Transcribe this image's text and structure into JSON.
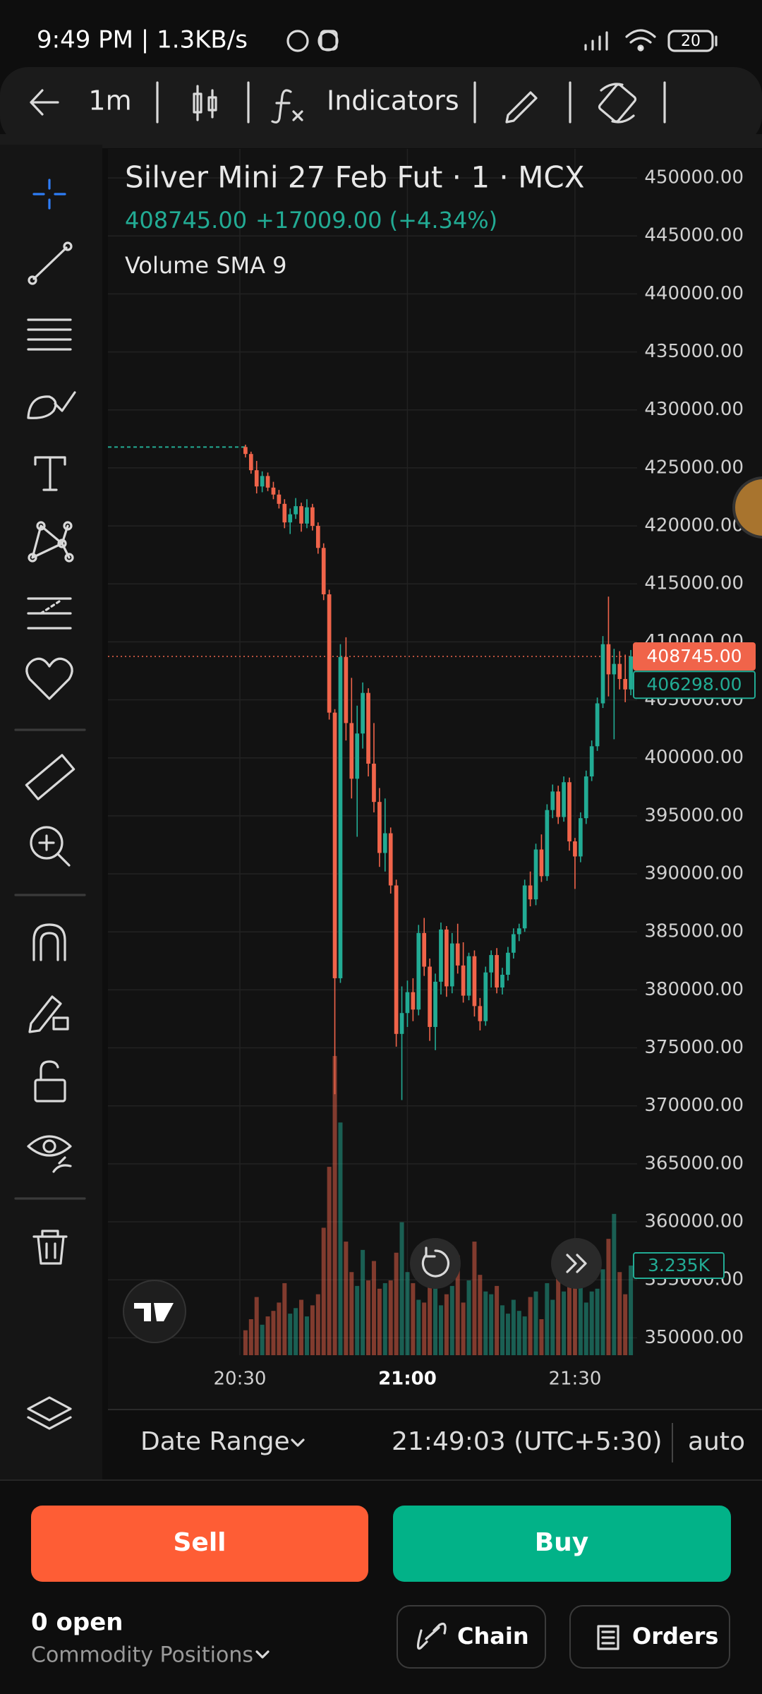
{
  "status_bar": {
    "time": "9:49 PM | 1.3KB/s",
    "battery": "20"
  },
  "toolbar": {
    "interval": "1m",
    "indicators": "Indicators"
  },
  "chart_data": {
    "type": "candlestick",
    "title": "Silver Mini 27 Feb Fut · 1 · MCX",
    "quote": "408745.00",
    "change": "+17009.00 (+4.34%)",
    "indicator": "Volume SMA 9",
    "up_color": "#22ab94",
    "down_color": "#f0644a",
    "ylim": [
      348500,
      452500
    ],
    "yticks": [
      {
        "value": 450000,
        "label": "450000.00"
      },
      {
        "value": 445000,
        "label": "445000.00"
      },
      {
        "value": 440000,
        "label": "440000.00"
      },
      {
        "value": 435000,
        "label": "435000.00"
      },
      {
        "value": 430000,
        "label": "430000.00"
      },
      {
        "value": 425000,
        "label": "425000.00"
      },
      {
        "value": 420000,
        "label": "420000.00"
      },
      {
        "value": 415000,
        "label": "415000.00"
      },
      {
        "value": 410000,
        "label": "410000.00"
      },
      {
        "value": 405000,
        "label": "405000.00"
      },
      {
        "value": 400000,
        "label": "400000.00"
      },
      {
        "value": 395000,
        "label": "395000.00"
      },
      {
        "value": 390000,
        "label": "390000.00"
      },
      {
        "value": 385000,
        "label": "385000.00"
      },
      {
        "value": 380000,
        "label": "380000.00"
      },
      {
        "value": 375000,
        "label": "375000.00"
      },
      {
        "value": 370000,
        "label": "370000.00"
      },
      {
        "value": 365000,
        "label": "365000.00"
      },
      {
        "value": 360000,
        "label": "360000.00"
      },
      {
        "value": 355000,
        "label": "355000.00"
      },
      {
        "value": 350000,
        "label": "350000.00"
      }
    ],
    "xlim": [
      "20:06",
      "21:41"
    ],
    "xticks": [
      "20:30",
      "21:00",
      "21:30"
    ],
    "grid": true,
    "reference_line": 426800,
    "x": [
      "20:31",
      "20:32",
      "20:33",
      "20:34",
      "20:35",
      "20:36",
      "20:37",
      "20:38",
      "20:39",
      "20:40",
      "20:41",
      "20:42",
      "20:43",
      "20:44",
      "20:45",
      "20:46",
      "20:47",
      "20:48",
      "20:49",
      "20:50",
      "20:51",
      "20:52",
      "20:53",
      "20:54",
      "20:55",
      "20:56",
      "20:57",
      "20:58",
      "20:59",
      "21:00",
      "21:01",
      "21:02",
      "21:03",
      "21:04",
      "21:05",
      "21:06",
      "21:07",
      "21:08",
      "21:09",
      "21:10",
      "21:11",
      "21:12",
      "21:13",
      "21:14",
      "21:15",
      "21:16",
      "21:17",
      "21:18",
      "21:19",
      "21:20",
      "21:21",
      "21:22",
      "21:23",
      "21:24",
      "21:25",
      "21:26",
      "21:27",
      "21:28",
      "21:29",
      "21:30",
      "21:31",
      "21:32",
      "21:33",
      "21:34",
      "21:35",
      "21:36",
      "21:37",
      "21:38",
      "21:39",
      "21:40"
    ],
    "ohlc": [
      [
        426800,
        427000,
        425900,
        426200
      ],
      [
        426200,
        426400,
        424500,
        424800
      ],
      [
        424800,
        425600,
        422800,
        423400
      ],
      [
        423400,
        424700,
        422900,
        424300
      ],
      [
        424300,
        424600,
        423000,
        423300
      ],
      [
        423300,
        423800,
        422300,
        422700
      ],
      [
        422700,
        423100,
        421500,
        421900
      ],
      [
        421900,
        422300,
        419800,
        420300
      ],
      [
        420300,
        421500,
        419300,
        421000
      ],
      [
        421000,
        422400,
        420600,
        421700
      ],
      [
        421700,
        422000,
        419500,
        420200
      ],
      [
        420200,
        422300,
        419800,
        421600
      ],
      [
        421600,
        421900,
        419600,
        420000
      ],
      [
        420000,
        420300,
        417600,
        418100
      ],
      [
        418100,
        418500,
        413600,
        414100
      ],
      [
        414100,
        414500,
        403300,
        403900
      ],
      [
        403900,
        404200,
        371000,
        381000
      ],
      [
        381000,
        409800,
        380600,
        408700
      ],
      [
        408700,
        410400,
        401500,
        403000
      ],
      [
        403000,
        406900,
        396500,
        398200
      ],
      [
        398200,
        404500,
        393200,
        402100
      ],
      [
        402100,
        406500,
        400800,
        405600
      ],
      [
        405600,
        406000,
        398400,
        399500
      ],
      [
        399500,
        403000,
        395300,
        396200
      ],
      [
        396200,
        397400,
        390600,
        391800
      ],
      [
        391800,
        396500,
        390200,
        393500
      ],
      [
        393500,
        394000,
        388300,
        389000
      ],
      [
        389000,
        389500,
        375100,
        376200
      ],
      [
        376200,
        380300,
        370500,
        378000
      ],
      [
        378000,
        380800,
        376800,
        379800
      ],
      [
        379800,
        381000,
        377300,
        378300
      ],
      [
        378300,
        385600,
        377800,
        384900
      ],
      [
        384900,
        386200,
        381200,
        382000
      ],
      [
        382000,
        382700,
        375600,
        376800
      ],
      [
        376800,
        381400,
        374800,
        380700
      ],
      [
        380700,
        385800,
        379600,
        385200
      ],
      [
        385200,
        385500,
        379400,
        380300
      ],
      [
        380300,
        384900,
        379700,
        384000
      ],
      [
        384000,
        385700,
        381400,
        382100
      ],
      [
        382100,
        384100,
        378900,
        379500
      ],
      [
        379500,
        383200,
        379100,
        382900
      ],
      [
        382900,
        383400,
        377700,
        378600
      ],
      [
        378600,
        379300,
        376500,
        377300
      ],
      [
        377300,
        382000,
        376900,
        381500
      ],
      [
        381500,
        383400,
        380200,
        383000
      ],
      [
        383000,
        383600,
        379700,
        380200
      ],
      [
        380200,
        381900,
        379600,
        381300
      ],
      [
        381300,
        383700,
        380800,
        383200
      ],
      [
        383200,
        385300,
        382700,
        384800
      ],
      [
        384800,
        385700,
        384200,
        385300
      ],
      [
        385300,
        389500,
        385000,
        389000
      ],
      [
        389000,
        390200,
        387200,
        387800
      ],
      [
        387800,
        392600,
        387300,
        392100
      ],
      [
        392100,
        393400,
        389300,
        389800
      ],
      [
        389800,
        396000,
        389400,
        395500
      ],
      [
        395500,
        397700,
        394800,
        397100
      ],
      [
        397100,
        397600,
        394300,
        394900
      ],
      [
        394900,
        398400,
        394500,
        397900
      ],
      [
        397900,
        398300,
        392000,
        392800
      ],
      [
        392800,
        393100,
        388700,
        391500
      ],
      [
        391500,
        395300,
        391000,
        394800
      ],
      [
        394800,
        398900,
        394300,
        398400
      ],
      [
        398400,
        401500,
        398000,
        401000
      ],
      [
        401000,
        405200,
        400600,
        404700
      ],
      [
        404700,
        410500,
        404300,
        409800
      ],
      [
        409800,
        413900,
        405300,
        407200
      ],
      [
        407200,
        409400,
        401600,
        408100
      ],
      [
        408100,
        409200,
        405900,
        406800
      ],
      [
        406800,
        408900,
        404800,
        405900
      ],
      [
        405900,
        409300,
        405400,
        408745
      ]
    ],
    "volume_ylim": [
      0,
      12000
    ],
    "volume": [
      900,
      1300,
      2100,
      1100,
      1400,
      1600,
      1900,
      2600,
      1500,
      1700,
      2000,
      1400,
      1800,
      2200,
      4600,
      6800,
      10800,
      8400,
      4100,
      3000,
      2500,
      3800,
      2700,
      3400,
      2400,
      2600,
      2700,
      3700,
      4800,
      3000,
      2600,
      2000,
      1900,
      2800,
      3400,
      1800,
      2200,
      2500,
      3600,
      1900,
      2700,
      4100,
      2900,
      2300,
      2200,
      2500,
      1800,
      1500,
      2000,
      1600,
      1400,
      2100,
      2300,
      1300,
      2600,
      2000,
      2800,
      2300,
      3900,
      3600,
      2500,
      1900,
      2300,
      2400,
      3100,
      4200,
      5100,
      3000,
      2200,
      3235
    ],
    "price_labels": [
      {
        "value": 408745,
        "label": "408745.00"
      },
      {
        "value": 406298,
        "label": "406298.00"
      }
    ],
    "volume_label": {
      "value": 3235,
      "label": "3.235K"
    }
  },
  "footer_bar": {
    "date_range": "Date Range",
    "clock": "21:49:03 (UTC+5:30)",
    "scale": "auto"
  },
  "trade": {
    "sell": "Sell",
    "buy": "Buy",
    "open": "0 open",
    "positions": "Commodity Positions",
    "chain": "Chain",
    "orders": "Orders"
  }
}
